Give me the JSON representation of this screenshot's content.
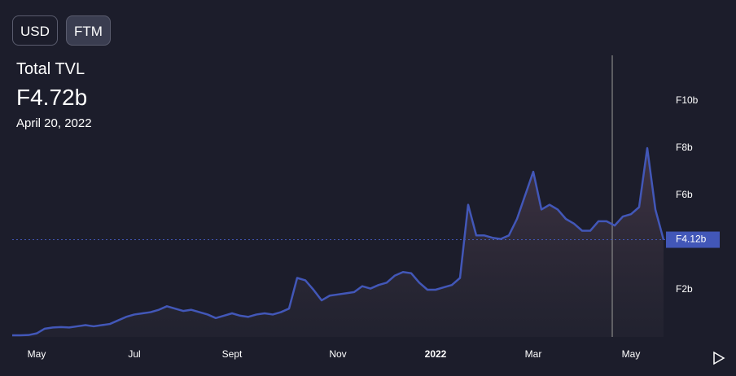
{
  "buttons": [
    "USD",
    "FTM"
  ],
  "header": {
    "title": "Total TVL",
    "value": "F4.72b",
    "date": "April 20, 2022"
  },
  "chart_data": {
    "type": "line",
    "categories": [
      null,
      null,
      null,
      "May",
      null,
      null,
      null,
      null,
      null,
      null,
      null,
      null,
      null,
      null,
      null,
      "Jul",
      null,
      null,
      null,
      null,
      null,
      null,
      null,
      null,
      null,
      null,
      null,
      "Sept",
      null,
      null,
      null,
      null,
      null,
      null,
      null,
      null,
      null,
      null,
      null,
      null,
      "Nov",
      null,
      null,
      null,
      null,
      null,
      null,
      null,
      null,
      null,
      null,
      null,
      "2022",
      null,
      null,
      null,
      null,
      null,
      null,
      null,
      null,
      null,
      null,
      null,
      "Mar",
      null,
      null,
      null,
      null,
      null,
      null,
      null,
      null,
      null,
      null,
      null,
      "May",
      null,
      null,
      null,
      null
    ],
    "values": [
      0.07,
      0.07,
      0.08,
      0.15,
      0.35,
      0.4,
      0.42,
      0.4,
      0.45,
      0.5,
      0.45,
      0.5,
      0.55,
      0.7,
      0.85,
      0.95,
      1.0,
      1.05,
      1.15,
      1.3,
      1.2,
      1.1,
      1.15,
      1.05,
      0.95,
      0.8,
      0.9,
      1.0,
      0.9,
      0.85,
      0.95,
      1.0,
      0.95,
      1.05,
      1.2,
      2.5,
      2.4,
      2.0,
      1.55,
      1.75,
      1.8,
      1.85,
      1.9,
      2.15,
      2.05,
      2.2,
      2.3,
      2.6,
      2.75,
      2.7,
      2.3,
      2.0,
      2.0,
      2.1,
      2.2,
      2.5,
      5.6,
      4.3,
      4.3,
      4.2,
      4.15,
      4.3,
      5.0,
      6.0,
      7.0,
      5.4,
      5.6,
      5.4,
      5.0,
      4.8,
      4.5,
      4.5,
      4.9,
      4.9,
      4.72,
      5.1,
      5.2,
      5.5,
      8.0,
      5.4,
      4.12
    ],
    "color": "#4257b8",
    "ylim": [
      0,
      12
    ],
    "yticks": [
      {
        "value": 2,
        "label": "F2b"
      },
      {
        "value": 6,
        "label": "F6b"
      },
      {
        "value": 8,
        "label": "F8b"
      },
      {
        "value": 10,
        "label": "F10b"
      }
    ],
    "last_value": {
      "value": 4.12,
      "label": "F4.12b"
    }
  }
}
